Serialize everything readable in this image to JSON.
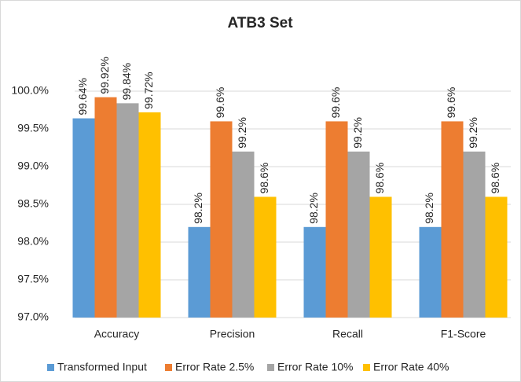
{
  "chart_data": {
    "type": "bar",
    "title": "ATB3 Set",
    "categories": [
      "Accuracy",
      "Precision",
      "Recall",
      "F1-Score"
    ],
    "series": [
      {
        "name": "Transformed Input",
        "color": "#5b9bd5",
        "values": [
          99.64,
          98.2,
          98.2,
          98.2
        ],
        "value_labels": [
          "99.64%",
          "98.2%",
          "98.2%",
          "98.2%"
        ]
      },
      {
        "name": "Error Rate 2.5%",
        "color": "#ed7d31",
        "values": [
          99.92,
          99.6,
          99.6,
          99.6
        ],
        "value_labels": [
          "99.92%",
          "99.6%",
          "99.6%",
          "99.6%"
        ]
      },
      {
        "name": "Error Rate 10%",
        "color": "#a5a5a5",
        "values": [
          99.84,
          99.2,
          99.2,
          99.2
        ],
        "value_labels": [
          "99.84%",
          "99.2%",
          "99.2%",
          "99.2%"
        ]
      },
      {
        "name": "Error Rate 40%",
        "color": "#ffc000",
        "values": [
          99.72,
          98.6,
          98.6,
          98.6
        ],
        "value_labels": [
          "99.72%",
          "98.6%",
          "98.6%",
          "98.6%"
        ]
      }
    ],
    "ylim": [
      97,
      100.5
    ],
    "yticks": [
      {
        "value": 97,
        "label": "97.0%"
      },
      {
        "value": 97.5,
        "label": "97.5%"
      },
      {
        "value": 98,
        "label": "98.0%"
      },
      {
        "value": 98.5,
        "label": "98.5%"
      },
      {
        "value": 99,
        "label": "99.0%"
      },
      {
        "value": 99.5,
        "label": "99.5%"
      },
      {
        "value": 100,
        "label": "100.0%"
      }
    ],
    "grid": true,
    "legend": "bottom"
  }
}
